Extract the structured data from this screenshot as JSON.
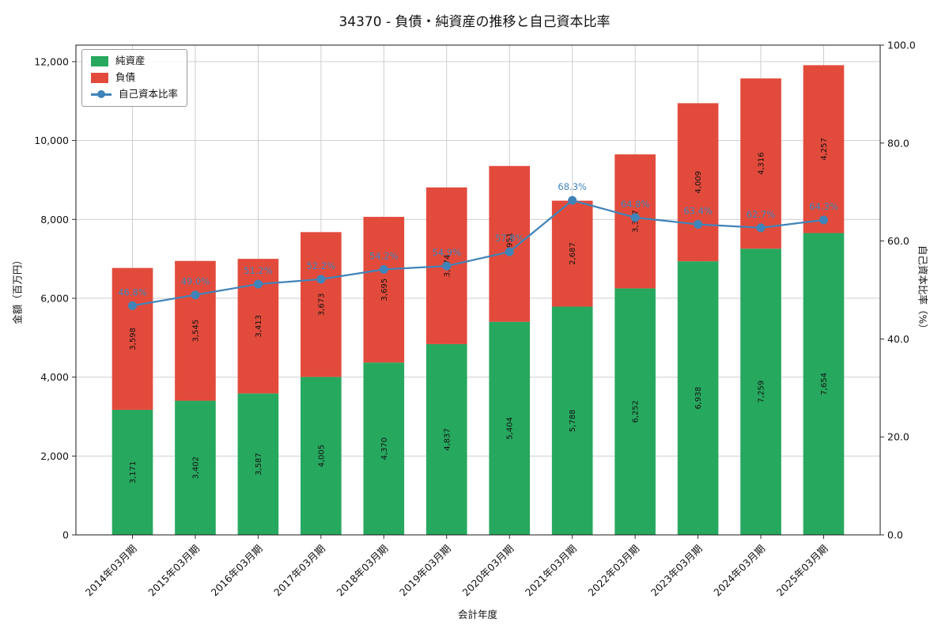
{
  "chart_data": {
    "type": "bar",
    "stacked": true,
    "title": "34370 - 負債・純資産の推移と自己資本比率",
    "xlabel": "会計年度",
    "ylabel_left": "金額（百万円）",
    "ylabel_right": "自己資本比率（%）",
    "categories": [
      "2014年03月期",
      "2015年03月期",
      "2016年03月期",
      "2017年03月期",
      "2018年03月期",
      "2019年03月期",
      "2020年03月期",
      "2021年03月期",
      "2022年03月期",
      "2023年03月期",
      "2024年03月期",
      "2025年03月期"
    ],
    "series": [
      {
        "name": "純資産",
        "color": "#27a85f",
        "values": [
          3171,
          3402,
          3587,
          4005,
          4370,
          4837,
          5404,
          5788,
          6252,
          6938,
          7259,
          7654
        ]
      },
      {
        "name": "負債",
        "color": "#e24b3c",
        "values": [
          3598,
          3545,
          3413,
          3673,
          3695,
          3974,
          3951,
          2687,
          3397,
          4009,
          4316,
          4257
        ]
      }
    ],
    "line_series": {
      "name": "自己資本比率",
      "color": "#3f83b8",
      "values_pct": [
        46.8,
        49.0,
        51.2,
        52.2,
        54.2,
        54.9,
        57.8,
        68.3,
        64.8,
        63.4,
        62.7,
        64.3
      ]
    },
    "ylim_left": [
      0,
      12420
    ],
    "yticks_left": [
      0,
      2000,
      4000,
      6000,
      8000,
      10000,
      12000
    ],
    "ylim_right": [
      0,
      100
    ],
    "yticks_right": [
      0,
      20,
      40,
      60,
      80,
      100
    ],
    "grid": true,
    "legend_position": "upper-left"
  }
}
